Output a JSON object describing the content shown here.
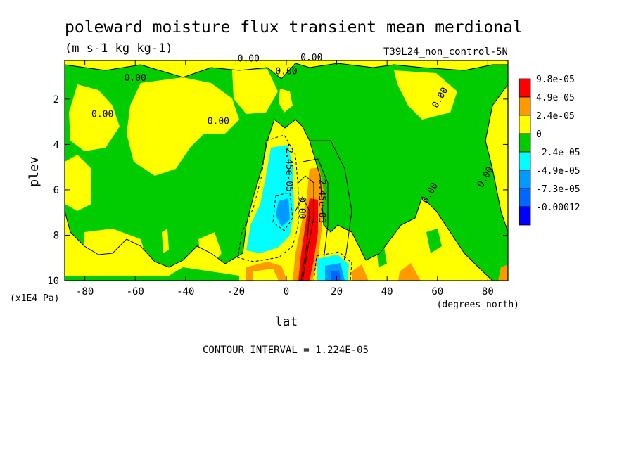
{
  "header": {
    "title": "poleward moisture flux transient mean merdional",
    "units": "(m s-1 kg kg-1)",
    "dataset": "T39L24_non_control-5N"
  },
  "footer": {
    "contour_interval": "CONTOUR INTERVAL = 1.224E-05"
  },
  "chart_data": {
    "type": "heatmap",
    "title": "poleward moisture flux transient mean merdional",
    "subtitle": "(m s-1 kg kg-1)",
    "dataset_label": "T39L24_non_control-5N",
    "xlabel": "lat",
    "x_units": "(degrees_north)",
    "ylabel": "plev",
    "y_units": "(x1E4 Pa)",
    "xlim": [
      -88,
      88
    ],
    "ylim": [
      10,
      0.3
    ],
    "y_inverted": true,
    "x_ticks": [
      -80,
      -60,
      -40,
      -20,
      0,
      20,
      40,
      60,
      80
    ],
    "y_ticks": [
      2,
      4,
      6,
      8,
      10
    ],
    "legend": {
      "placement": "right",
      "levels": [
        "9.8e-05",
        "4.9e-05",
        "2.4e-05",
        "0",
        "-2.4e-05",
        "-4.9e-05",
        "-7.3e-05",
        "-0.00012"
      ],
      "colors": [
        "#ff0000",
        "#ff9900",
        "#ffff00",
        "#00cc00",
        "#00ffff",
        "#0099ff",
        "#0066ff",
        "#0000ff"
      ]
    },
    "contour_labels": [
      {
        "text": "0.00",
        "lat": -15,
        "plev": 0.35
      },
      {
        "text": "0.00",
        "lat": 10,
        "plev": 0.3
      },
      {
        "text": "0.00",
        "lat": -60,
        "plev": 1.2
      },
      {
        "text": "0.00",
        "lat": -73,
        "plev": 2.8
      },
      {
        "text": "0.00",
        "lat": -27,
        "plev": 3.1
      },
      {
        "text": "0.00",
        "lat": 0,
        "plev": 0.9
      },
      {
        "text": "0.00",
        "lat": 62,
        "plev": 2.0
      },
      {
        "text": "0.00",
        "lat": 80,
        "plev": 5.5
      },
      {
        "text": "0.00",
        "lat": 58,
        "plev": 6.2
      },
      {
        "text": "0.00",
        "lat": 5,
        "plev": 6.8
      },
      {
        "text": "-2.45e-05",
        "lat": 0,
        "plev": 5.0
      },
      {
        "text": "2.45e-05",
        "lat": 13,
        "plev": 6.5
      }
    ],
    "colors": {
      "positive_high": "#ff0000",
      "positive_mid": "#ff9900",
      "positive_low": "#ffff00",
      "near_zero": "#00cc00",
      "negative_low": "#00ffff",
      "negative_mid": "#0099ff",
      "negative_high": "#0066ff",
      "negative_max": "#0000ff"
    }
  }
}
